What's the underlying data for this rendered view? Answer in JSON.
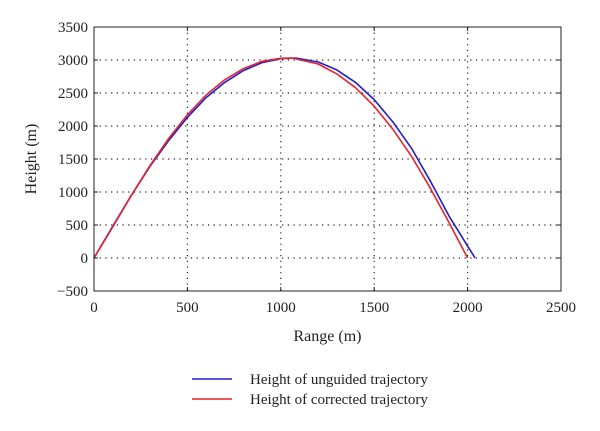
{
  "chart_data": {
    "type": "line",
    "xlabel": "Range (m)",
    "ylabel": "Height (m)",
    "xlim": [
      0,
      2500
    ],
    "ylim": [
      -500,
      3500
    ],
    "xticks": [
      0,
      500,
      1000,
      1500,
      2000,
      2500
    ],
    "yticks": [
      -500,
      0,
      500,
      1000,
      1500,
      2000,
      2500,
      3000,
      3500
    ],
    "grid": "dotted",
    "legend_position": "below",
    "series": [
      {
        "name": "Height of unguided trajectory",
        "color": "#1f1fd0",
        "x": [
          0,
          100,
          200,
          300,
          400,
          500,
          600,
          700,
          800,
          900,
          1000,
          1080,
          1200,
          1300,
          1400,
          1500,
          1600,
          1700,
          1800,
          1900,
          2000,
          2040
        ],
        "y": [
          0,
          480,
          950,
          1390,
          1780,
          2130,
          2430,
          2660,
          2840,
          2960,
          3020,
          3030,
          2970,
          2850,
          2660,
          2400,
          2060,
          1660,
          1170,
          640,
          180,
          0
        ]
      },
      {
        "name": "Height of corrected trajectory",
        "color": "#e8212a",
        "x": [
          0,
          100,
          200,
          300,
          400,
          500,
          600,
          700,
          800,
          900,
          1000,
          1060,
          1200,
          1300,
          1400,
          1500,
          1600,
          1700,
          1800,
          1900,
          2000
        ],
        "y": [
          0,
          470,
          950,
          1400,
          1810,
          2170,
          2470,
          2700,
          2870,
          2980,
          3025,
          3030,
          2940,
          2790,
          2580,
          2300,
          1950,
          1540,
          1060,
          540,
          0
        ]
      }
    ]
  }
}
